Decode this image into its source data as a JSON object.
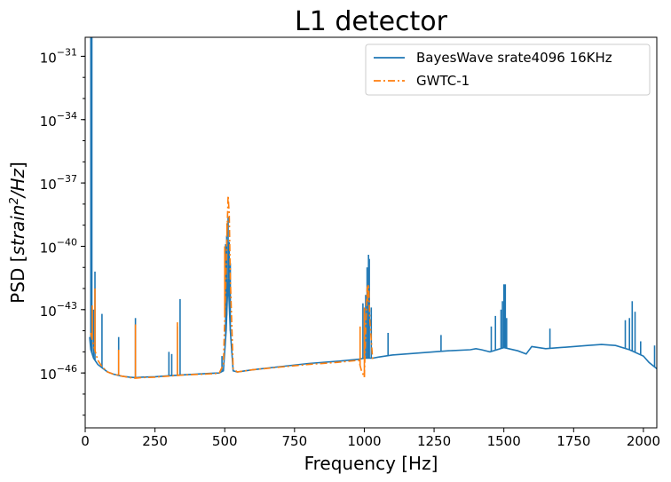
{
  "chart_data": {
    "type": "line",
    "title": "L1  detector",
    "xlabel": "Frequency [Hz]",
    "ylabel": {
      "prefix": "PSD [",
      "italic_base": "strain",
      "superscript": "2",
      "italic_suffix": "/Hz",
      "suffix": "]"
    },
    "xlim": [
      0,
      2048
    ],
    "ylim_log10": [
      -48.6,
      -30.1
    ],
    "yscale": "log",
    "grid": false,
    "legend_position": "upper-right",
    "x_ticks": [
      {
        "value": 0,
        "label": "0"
      },
      {
        "value": 250,
        "label": "250"
      },
      {
        "value": 500,
        "label": "500"
      },
      {
        "value": 750,
        "label": "750"
      },
      {
        "value": 1000,
        "label": "1000"
      },
      {
        "value": 1250,
        "label": "1250"
      },
      {
        "value": 1500,
        "label": "1500"
      },
      {
        "value": 1750,
        "label": "1750"
      },
      {
        "value": 2000,
        "label": "2000"
      }
    ],
    "y_ticks": [
      {
        "exp": -31,
        "base": "10",
        "exponent": "−31"
      },
      {
        "exp": -34,
        "base": "10",
        "exponent": "−34"
      },
      {
        "exp": -37,
        "base": "10",
        "exponent": "−37"
      },
      {
        "exp": -40,
        "base": "10",
        "exponent": "−40"
      },
      {
        "exp": -43,
        "base": "10",
        "exponent": "−43"
      },
      {
        "exp": -46,
        "base": "10",
        "exponent": "−46"
      }
    ],
    "series": [
      {
        "name": "BayesWave srate4096 16KHz",
        "color": "#1f77b4",
        "style": "solid",
        "baseline_log10": [
          [
            16,
            -44.3
          ],
          [
            20,
            -44.9
          ],
          [
            30,
            -45.3
          ],
          [
            45,
            -45.6
          ],
          [
            60,
            -45.75
          ],
          [
            80,
            -45.95
          ],
          [
            100,
            -46.05
          ],
          [
            130,
            -46.15
          ],
          [
            160,
            -46.2
          ],
          [
            180,
            -46.22
          ],
          [
            200,
            -46.2
          ],
          [
            250,
            -46.18
          ],
          [
            300,
            -46.13
          ],
          [
            350,
            -46.09
          ],
          [
            400,
            -46.05
          ],
          [
            450,
            -46.02
          ],
          [
            480,
            -46.0
          ],
          [
            495,
            -45.9
          ],
          [
            505,
            -44.0
          ],
          [
            512,
            -41.5
          ],
          [
            520,
            -44.0
          ],
          [
            530,
            -45.9
          ],
          [
            545,
            -45.95
          ],
          [
            600,
            -45.85
          ],
          [
            700,
            -45.7
          ],
          [
            800,
            -45.55
          ],
          [
            900,
            -45.45
          ],
          [
            980,
            -45.35
          ],
          [
            1000,
            -45.3
          ],
          [
            1030,
            -45.3
          ],
          [
            1050,
            -45.25
          ],
          [
            1100,
            -45.15
          ],
          [
            1200,
            -45.05
          ],
          [
            1300,
            -44.95
          ],
          [
            1380,
            -44.9
          ],
          [
            1400,
            -44.85
          ],
          [
            1420,
            -44.9
          ],
          [
            1450,
            -45.0
          ],
          [
            1500,
            -44.8
          ],
          [
            1550,
            -44.95
          ],
          [
            1580,
            -45.1
          ],
          [
            1600,
            -44.75
          ],
          [
            1650,
            -44.85
          ],
          [
            1700,
            -44.8
          ],
          [
            1800,
            -44.7
          ],
          [
            1850,
            -44.65
          ],
          [
            1900,
            -44.7
          ],
          [
            1950,
            -44.9
          ],
          [
            2000,
            -45.2
          ],
          [
            2020,
            -45.5
          ],
          [
            2048,
            -45.8
          ]
        ],
        "lines": [
          [
            20,
            -30.1
          ],
          [
            24,
            -30.1
          ],
          [
            30,
            -43.0
          ],
          [
            35,
            -41.2
          ],
          [
            60,
            -43.2
          ],
          [
            120,
            -44.3
          ],
          [
            180,
            -43.4
          ],
          [
            300,
            -45.0
          ],
          [
            310,
            -45.1
          ],
          [
            330,
            -43.8
          ],
          [
            340,
            -42.5
          ],
          [
            490,
            -45.2
          ],
          [
            503,
            -39.9
          ],
          [
            507,
            -39.5
          ],
          [
            512,
            -38.6
          ],
          [
            516,
            -39.8
          ],
          [
            520,
            -40.8
          ],
          [
            995,
            -42.7
          ],
          [
            1005,
            -42.3
          ],
          [
            1010,
            -41.0
          ],
          [
            1015,
            -40.4
          ],
          [
            1018,
            -40.6
          ],
          [
            1025,
            -42.9
          ],
          [
            1085,
            -44.1
          ],
          [
            1275,
            -44.2
          ],
          [
            1455,
            -43.8
          ],
          [
            1470,
            -43.3
          ],
          [
            1490,
            -43.0
          ],
          [
            1495,
            -42.6
          ],
          [
            1500,
            -41.8
          ],
          [
            1505,
            -41.8
          ],
          [
            1510,
            -43.4
          ],
          [
            1665,
            -43.9
          ],
          [
            1935,
            -43.5
          ],
          [
            1950,
            -43.4
          ],
          [
            1960,
            -42.6
          ],
          [
            1970,
            -43.1
          ],
          [
            1990,
            -44.5
          ],
          [
            2040,
            -44.7
          ]
        ]
      },
      {
        "name": "GWTC-1",
        "color": "#ff7f0e",
        "style": "dashdot",
        "baseline_log10": [
          [
            20,
            -44.1
          ],
          [
            30,
            -44.7
          ],
          [
            45,
            -45.4
          ],
          [
            60,
            -45.7
          ],
          [
            80,
            -45.95
          ],
          [
            100,
            -46.05
          ],
          [
            130,
            -46.15
          ],
          [
            160,
            -46.22
          ],
          [
            180,
            -46.25
          ],
          [
            200,
            -46.22
          ],
          [
            250,
            -46.2
          ],
          [
            300,
            -46.15
          ],
          [
            350,
            -46.1
          ],
          [
            400,
            -46.07
          ],
          [
            450,
            -46.04
          ],
          [
            480,
            -46.02
          ],
          [
            495,
            -45.6
          ],
          [
            503,
            -42.0
          ],
          [
            508,
            -39.5
          ],
          [
            512,
            -37.6
          ],
          [
            516,
            -38.5
          ],
          [
            520,
            -41.5
          ],
          [
            530,
            -45.8
          ],
          [
            545,
            -45.95
          ],
          [
            600,
            -45.85
          ],
          [
            700,
            -45.72
          ],
          [
            800,
            -45.6
          ],
          [
            900,
            -45.5
          ],
          [
            980,
            -45.4
          ],
          [
            990,
            -45.9
          ],
          [
            1000,
            -46.2
          ],
          [
            1005,
            -44.0
          ],
          [
            1010,
            -42.0
          ],
          [
            1015,
            -41.8
          ],
          [
            1020,
            -43.5
          ],
          [
            1030,
            -45.4
          ]
        ],
        "lines": [
          [
            25,
            -42.8
          ],
          [
            35,
            -42.0
          ],
          [
            120,
            -44.9
          ],
          [
            180,
            -43.7
          ],
          [
            330,
            -43.6
          ],
          [
            500,
            -40.0
          ],
          [
            508,
            -38.9
          ],
          [
            985,
            -43.8
          ],
          [
            1000,
            -42.9
          ],
          [
            1012,
            -42.6
          ]
        ]
      }
    ]
  }
}
